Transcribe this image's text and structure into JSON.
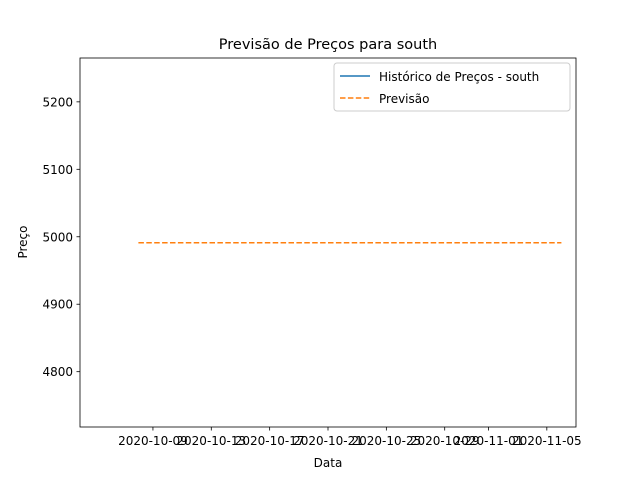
{
  "chart_data": {
    "type": "line",
    "title": "Previsão de Preços para south",
    "xlabel": "Data",
    "ylabel": "Preço",
    "x_ticks": [
      "2020-10-09",
      "2020-10-13",
      "2020-10-17",
      "2020-10-21",
      "2020-10-25",
      "2020-10-29",
      "2020-11-01",
      "2020-11-05"
    ],
    "y_ticks": [
      4800,
      4900,
      5000,
      5100,
      5200
    ],
    "xlim": [
      "2020-10-04",
      "2020-11-07"
    ],
    "ylim": [
      4718,
      5265
    ],
    "legend": {
      "placement": "upper right",
      "entries": [
        "Histórico de Preços - south",
        "Previsão"
      ]
    },
    "series": [
      {
        "name": "Histórico de Preços - south",
        "style": "solid",
        "color": "#1f77b4",
        "x": [],
        "y": []
      },
      {
        "name": "Previsão",
        "style": "dashed",
        "color": "#ff7f0e",
        "x": [
          "2020-10-08",
          "2020-11-06"
        ],
        "y": [
          4991,
          4991
        ]
      }
    ],
    "grid": false
  }
}
